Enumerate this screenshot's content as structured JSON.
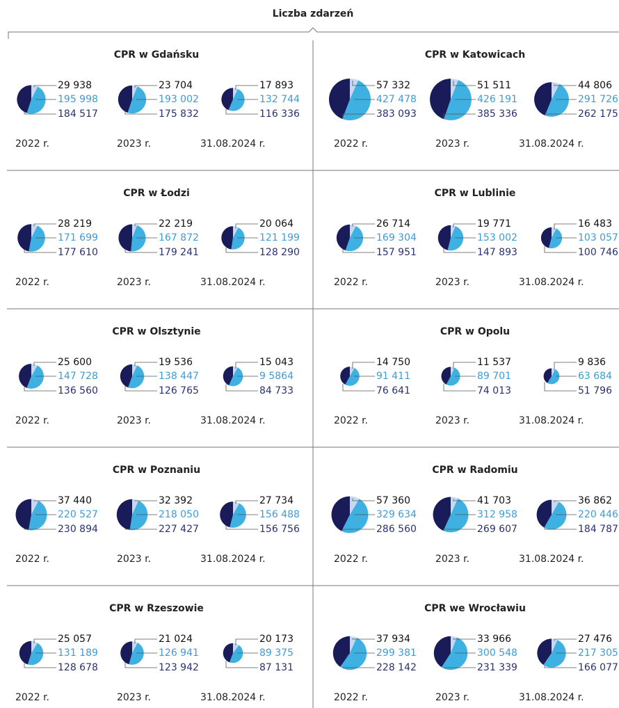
{
  "title": "Liczba zdarzeń",
  "chart_data": [
    {
      "type": "pie",
      "title": "CPR w Gdańsku",
      "categories": [
        "2022 r.",
        "2023 r.",
        "31.08.2024 r."
      ],
      "series": [
        {
          "color": "#c6d9f0",
          "values": [
            29938,
            23704,
            17893
          ],
          "value_labels": [
            "29 938",
            "23 704",
            "17 893"
          ]
        },
        {
          "color": "#3fb0e2",
          "values": [
            195998,
            193002,
            132744
          ],
          "value_labels": [
            "195 998",
            "193 002",
            "132 744"
          ]
        },
        {
          "color": "#191c59",
          "values": [
            184517,
            175832,
            116336
          ],
          "value_labels": [
            "184 517",
            "175 832",
            "116 336"
          ]
        }
      ]
    },
    {
      "type": "pie",
      "title": "CPR w Katowicach",
      "categories": [
        "2022 r.",
        "2023 r.",
        "31.08.2024 r."
      ],
      "series": [
        {
          "color": "#c6d9f0",
          "values": [
            57332,
            51511,
            44806
          ],
          "value_labels": [
            "57 332",
            "51 511",
            "44 806"
          ]
        },
        {
          "color": "#3fb0e2",
          "values": [
            427478,
            426191,
            291726
          ],
          "value_labels": [
            "427 478",
            "426 191",
            "291 726"
          ]
        },
        {
          "color": "#191c59",
          "values": [
            383093,
            385336,
            262175
          ],
          "value_labels": [
            "383 093",
            "385 336",
            "262 175"
          ]
        }
      ]
    },
    {
      "type": "pie",
      "title": "CPR w Łodzi",
      "categories": [
        "2022 r.",
        "2023 r.",
        "31.08.2024 r."
      ],
      "series": [
        {
          "color": "#c6d9f0",
          "values": [
            28219,
            22219,
            20064
          ],
          "value_labels": [
            "28 219",
            "22 219",
            "20 064"
          ]
        },
        {
          "color": "#3fb0e2",
          "values": [
            171699,
            167872,
            121199
          ],
          "value_labels": [
            "171 699",
            "167 872",
            "121 199"
          ]
        },
        {
          "color": "#191c59",
          "values": [
            177610,
            179241,
            128290
          ],
          "value_labels": [
            "177 610",
            "179 241",
            "128 290"
          ]
        }
      ]
    },
    {
      "type": "pie",
      "title": "CPR w Lublinie",
      "categories": [
        "2022 r.",
        "2023 r.",
        "31.08.2024 r."
      ],
      "series": [
        {
          "color": "#c6d9f0",
          "values": [
            26714,
            19771,
            16483
          ],
          "value_labels": [
            "26 714",
            "19 771",
            "16 483"
          ]
        },
        {
          "color": "#3fb0e2",
          "values": [
            169304,
            153002,
            103057
          ],
          "value_labels": [
            "169 304",
            "153 002",
            "103 057"
          ]
        },
        {
          "color": "#191c59",
          "values": [
            157951,
            147893,
            100746
          ],
          "value_labels": [
            "157 951",
            "147 893",
            "100 746"
          ]
        }
      ]
    },
    {
      "type": "pie",
      "title": "CPR w Olsztynie",
      "categories": [
        "2022 r.",
        "2023 r.",
        "31.08.2024 r."
      ],
      "series": [
        {
          "color": "#c6d9f0",
          "values": [
            25600,
            19536,
            15043
          ],
          "value_labels": [
            "25 600",
            "19 536",
            "15 043"
          ]
        },
        {
          "color": "#3fb0e2",
          "values": [
            147728,
            138447,
            95864
          ],
          "value_labels": [
            "147 728",
            "138 447",
            "9 5864"
          ]
        },
        {
          "color": "#191c59",
          "values": [
            136560,
            126765,
            84733
          ],
          "value_labels": [
            "136 560",
            "126 765",
            "84 733"
          ]
        }
      ]
    },
    {
      "type": "pie",
      "title": "CPR w Opolu",
      "categories": [
        "2022 r.",
        "2023 r.",
        "31.08.2024 r."
      ],
      "series": [
        {
          "color": "#c6d9f0",
          "values": [
            14750,
            11537,
            9836
          ],
          "value_labels": [
            "14 750",
            "11 537",
            "9 836"
          ]
        },
        {
          "color": "#3fb0e2",
          "values": [
            91411,
            89701,
            63684
          ],
          "value_labels": [
            "91 411",
            "89 701",
            "63 684"
          ]
        },
        {
          "color": "#191c59",
          "values": [
            76641,
            74013,
            51796
          ],
          "value_labels": [
            "76 641",
            "74 013",
            "51 796"
          ]
        }
      ]
    },
    {
      "type": "pie",
      "title": "CPR w Poznaniu",
      "categories": [
        "2022 r.",
        "2023 r.",
        "31.08.2024 r."
      ],
      "series": [
        {
          "color": "#c6d9f0",
          "values": [
            37440,
            32392,
            27734
          ],
          "value_labels": [
            "37 440",
            "32 392",
            "27 734"
          ]
        },
        {
          "color": "#3fb0e2",
          "values": [
            220527,
            218050,
            156488
          ],
          "value_labels": [
            "220 527",
            "218 050",
            "156 488"
          ]
        },
        {
          "color": "#191c59",
          "values": [
            230894,
            227427,
            156756
          ],
          "value_labels": [
            "230 894",
            "227 427",
            "156 756"
          ]
        }
      ]
    },
    {
      "type": "pie",
      "title": "CPR w Radomiu",
      "categories": [
        "2022 r.",
        "2023 r.",
        "31.08.2024 r."
      ],
      "series": [
        {
          "color": "#c6d9f0",
          "values": [
            57360,
            41703,
            36862
          ],
          "value_labels": [
            "57 360",
            "41 703",
            "36 862"
          ]
        },
        {
          "color": "#3fb0e2",
          "values": [
            329634,
            312958,
            220446
          ],
          "value_labels": [
            "329 634",
            "312 958",
            "220 446"
          ]
        },
        {
          "color": "#191c59",
          "values": [
            286560,
            269607,
            184787
          ],
          "value_labels": [
            "286 560",
            "269 607",
            "184 787"
          ]
        }
      ]
    },
    {
      "type": "pie",
      "title": "CPR w Rzeszowie",
      "categories": [
        "2022 r.",
        "2023 r.",
        "31.08.2024 r."
      ],
      "series": [
        {
          "color": "#c6d9f0",
          "values": [
            25057,
            21024,
            20173
          ],
          "value_labels": [
            "25 057",
            "21 024",
            "20 173"
          ]
        },
        {
          "color": "#3fb0e2",
          "values": [
            131189,
            126941,
            89375
          ],
          "value_labels": [
            "131 189",
            "126 941",
            "89 375"
          ]
        },
        {
          "color": "#191c59",
          "values": [
            128678,
            123942,
            87131
          ],
          "value_labels": [
            "128 678",
            "123 942",
            "87 131"
          ]
        }
      ]
    },
    {
      "type": "pie",
      "title": "CPR we Wrocławiu",
      "categories": [
        "2022 r.",
        "2023 r.",
        "31.08.2024 r."
      ],
      "series": [
        {
          "color": "#c6d9f0",
          "values": [
            37934,
            33966,
            27476
          ],
          "value_labels": [
            "37 934",
            "33 966",
            "27 476"
          ]
        },
        {
          "color": "#3fb0e2",
          "values": [
            299381,
            300548,
            217305
          ],
          "value_labels": [
            "299 381",
            "300 548",
            "217 305"
          ]
        },
        {
          "color": "#191c59",
          "values": [
            228142,
            231339,
            166077
          ],
          "value_labels": [
            "228 142",
            "231 339",
            "166 077"
          ]
        }
      ]
    }
  ]
}
